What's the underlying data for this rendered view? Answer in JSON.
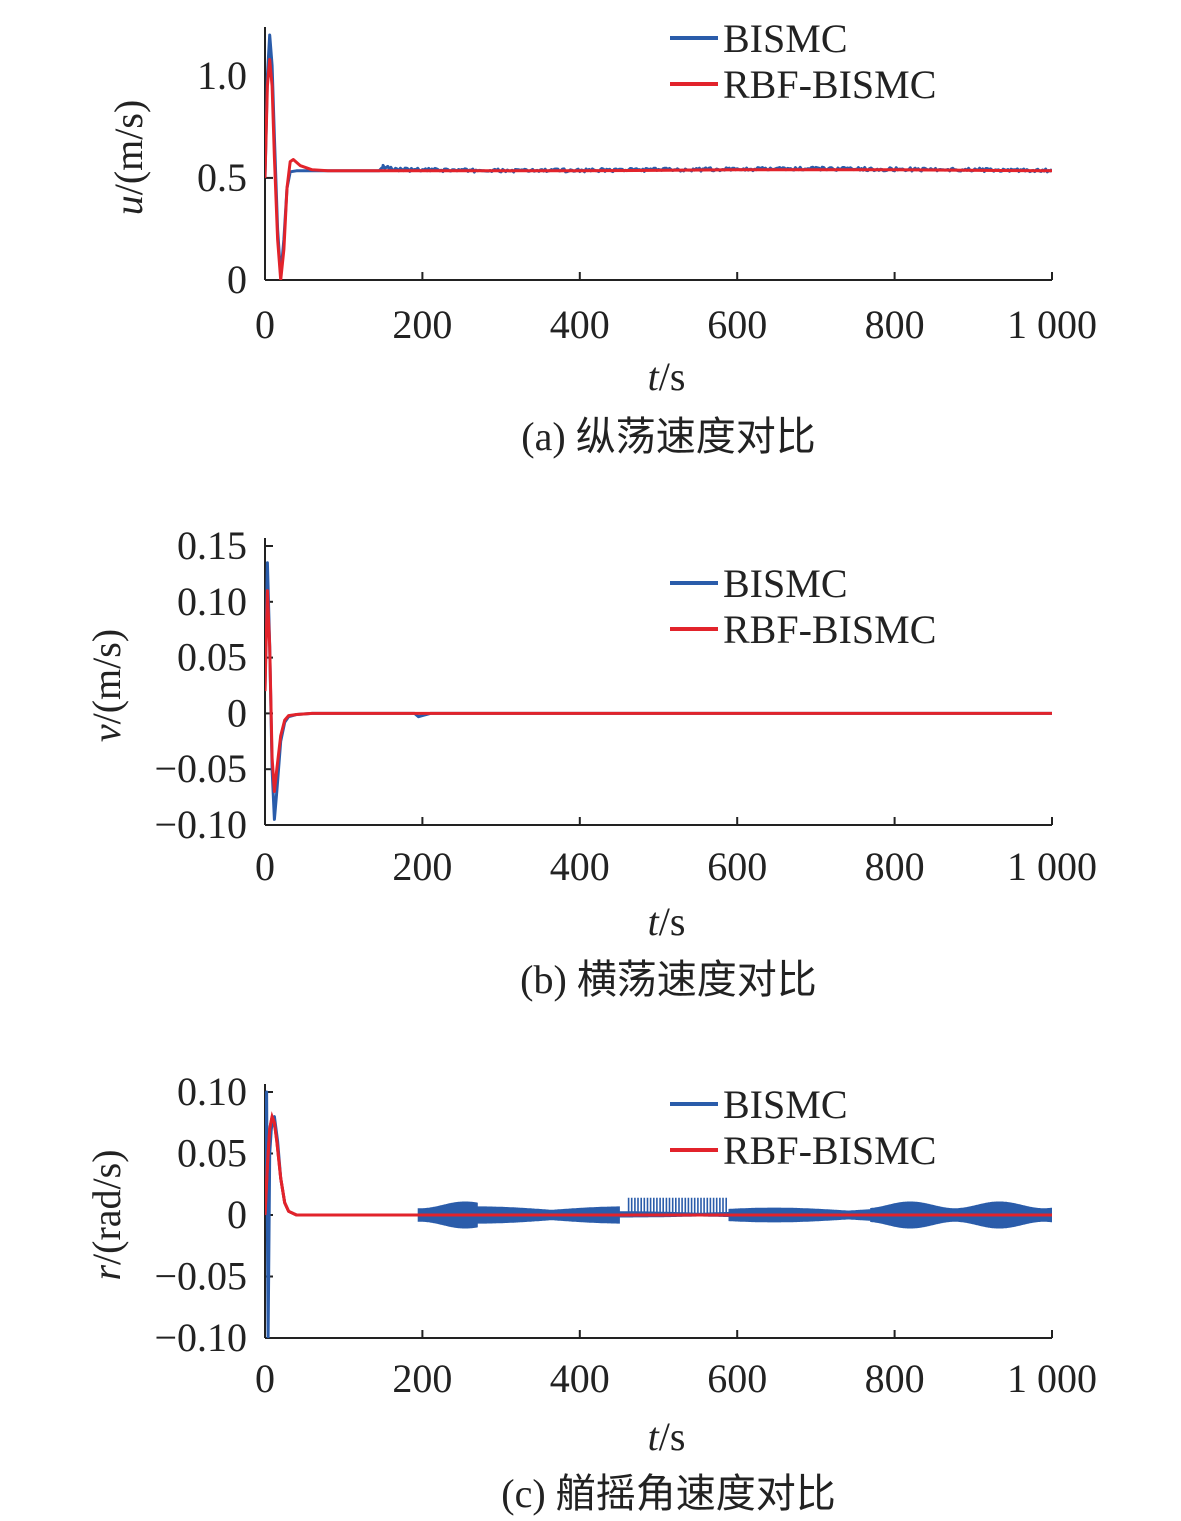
{
  "colors": {
    "bismc": "#2a5caa",
    "rbf": "#e2232b",
    "axis": "#222222"
  },
  "chart_data": [
    {
      "type": "line",
      "ylabel_var": "u",
      "ylabel_unit": "/(m/s)",
      "xlabel_var": "t",
      "xlabel_unit": "/s",
      "xlim": [
        0,
        1000
      ],
      "ylim": [
        0,
        1.2
      ],
      "xticks": [
        0,
        200,
        400,
        600,
        800,
        1000
      ],
      "xtick_labels": [
        "0",
        "200",
        "400",
        "600",
        "800",
        "1 000"
      ],
      "yticks": [
        0,
        0.5,
        1.0
      ],
      "ytick_labels": [
        "0",
        "0.5",
        "1.0"
      ],
      "legend": [
        "BISMC",
        "RBF-BISMC"
      ],
      "legend_position": "top-right",
      "caption": "(a) 纵荡速度对比",
      "series": [
        {
          "name": "BISMC",
          "color": "#2a5caa",
          "x": [
            0,
            3,
            6,
            9,
            12,
            16,
            20,
            24,
            28,
            32,
            40,
            60,
            100,
            145,
            150,
            160,
            180,
            300,
            500,
            700,
            900,
            1000
          ],
          "y": [
            0.5,
            1.0,
            1.2,
            1.05,
            0.7,
            0.25,
            0.02,
            0.2,
            0.45,
            0.53,
            0.535,
            0.535,
            0.535,
            0.535,
            0.555,
            0.545,
            0.54,
            0.535,
            0.54,
            0.545,
            0.54,
            0.535
          ],
          "noise_from": 150,
          "noise_amp": 0.008
        },
        {
          "name": "RBF-BISMC",
          "color": "#e2232b",
          "x": [
            0,
            3,
            6,
            9,
            12,
            16,
            20,
            24,
            28,
            32,
            36,
            45,
            60,
            80,
            100,
            200,
            400,
            600,
            800,
            1000
          ],
          "y": [
            0.5,
            0.95,
            1.08,
            0.95,
            0.6,
            0.2,
            0.0,
            0.15,
            0.45,
            0.58,
            0.59,
            0.56,
            0.54,
            0.535,
            0.535,
            0.535,
            0.535,
            0.54,
            0.54,
            0.535
          ]
        }
      ]
    },
    {
      "type": "line",
      "ylabel_var": "v",
      "ylabel_unit": "/(m/s)",
      "xlabel_var": "t",
      "xlabel_unit": "/s",
      "xlim": [
        0,
        1000
      ],
      "ylim": [
        -0.1,
        0.15
      ],
      "xticks": [
        0,
        200,
        400,
        600,
        800,
        1000
      ],
      "xtick_labels": [
        "0",
        "200",
        "400",
        "600",
        "800",
        "1 000"
      ],
      "yticks": [
        -0.1,
        -0.05,
        0,
        0.05,
        0.1,
        0.15
      ],
      "ytick_labels": [
        "−0.10",
        "−0.05",
        "0",
        "0.05",
        "0.10",
        "0.15"
      ],
      "legend": [
        "BISMC",
        "RBF-BISMC"
      ],
      "legend_position": "top-right",
      "caption": "(b) 横荡速度对比",
      "series": [
        {
          "name": "BISMC",
          "color": "#2a5caa",
          "x": [
            0,
            3,
            6,
            9,
            12,
            15,
            20,
            25,
            30,
            40,
            60,
            100,
            190,
            195,
            200,
            210,
            1000
          ],
          "y": [
            0.02,
            0.135,
            0.06,
            -0.05,
            -0.095,
            -0.07,
            -0.025,
            -0.008,
            -0.003,
            -0.001,
            0,
            0,
            0,
            -0.003,
            -0.002,
            0,
            0
          ]
        },
        {
          "name": "RBF-BISMC",
          "color": "#e2232b",
          "x": [
            0,
            3,
            6,
            9,
            12,
            15,
            20,
            25,
            30,
            40,
            60,
            100,
            1000
          ],
          "y": [
            0.02,
            0.11,
            0.06,
            -0.04,
            -0.07,
            -0.05,
            -0.02,
            -0.006,
            -0.002,
            -0.001,
            0,
            0,
            0
          ]
        }
      ]
    },
    {
      "type": "line",
      "ylabel_var": "r",
      "ylabel_unit": "/(rad/s)",
      "xlabel_var": "t",
      "xlabel_unit": "/s",
      "xlim": [
        0,
        1000
      ],
      "ylim": [
        -0.1,
        0.1
      ],
      "xticks": [
        0,
        200,
        400,
        600,
        800,
        1000
      ],
      "xtick_labels": [
        "0",
        "200",
        "400",
        "600",
        "800",
        "1 000"
      ],
      "yticks": [
        -0.1,
        -0.05,
        0,
        0.05,
        0.1
      ],
      "ytick_labels": [
        "−0.10",
        "−0.05",
        "0",
        "0.05",
        "0.10"
      ],
      "legend": [
        "BISMC",
        "RBF-BISMC"
      ],
      "legend_position": "top-right",
      "caption": "(c) 艏摇角速度对比",
      "series": [
        {
          "name": "BISMC",
          "color": "#2a5caa",
          "x": [
            0,
            2,
            4,
            6,
            8,
            12,
            16,
            20,
            25,
            30,
            40,
            60,
            100,
            195
          ],
          "y": [
            0.0,
            0.1,
            -0.1,
            0.05,
            0.07,
            0.08,
            0.06,
            0.03,
            0.01,
            0.003,
            0.0,
            0.0,
            0.0,
            0.0
          ],
          "band": [
            {
              "x0": 195,
              "x1": 270,
              "lo": -0.011,
              "hi": 0.011
            },
            {
              "x0": 270,
              "x1": 450,
              "lo": -0.007,
              "hi": 0.007
            },
            {
              "x0": 450,
              "x1": 590,
              "lo": -0.002,
              "hi": 0.003,
              "spikes": 0.014
            },
            {
              "x0": 590,
              "x1": 770,
              "lo": -0.006,
              "hi": 0.006
            },
            {
              "x0": 770,
              "x1": 1000,
              "lo": -0.011,
              "hi": 0.011
            }
          ]
        },
        {
          "name": "RBF-BISMC",
          "color": "#e2232b",
          "x": [
            0,
            3,
            6,
            9,
            12,
            15,
            20,
            25,
            30,
            40,
            60,
            100,
            1000
          ],
          "y": [
            0.0,
            0.04,
            0.07,
            0.08,
            0.075,
            0.06,
            0.03,
            0.01,
            0.003,
            0.0,
            0.0,
            0.0,
            0.0
          ]
        }
      ]
    }
  ]
}
